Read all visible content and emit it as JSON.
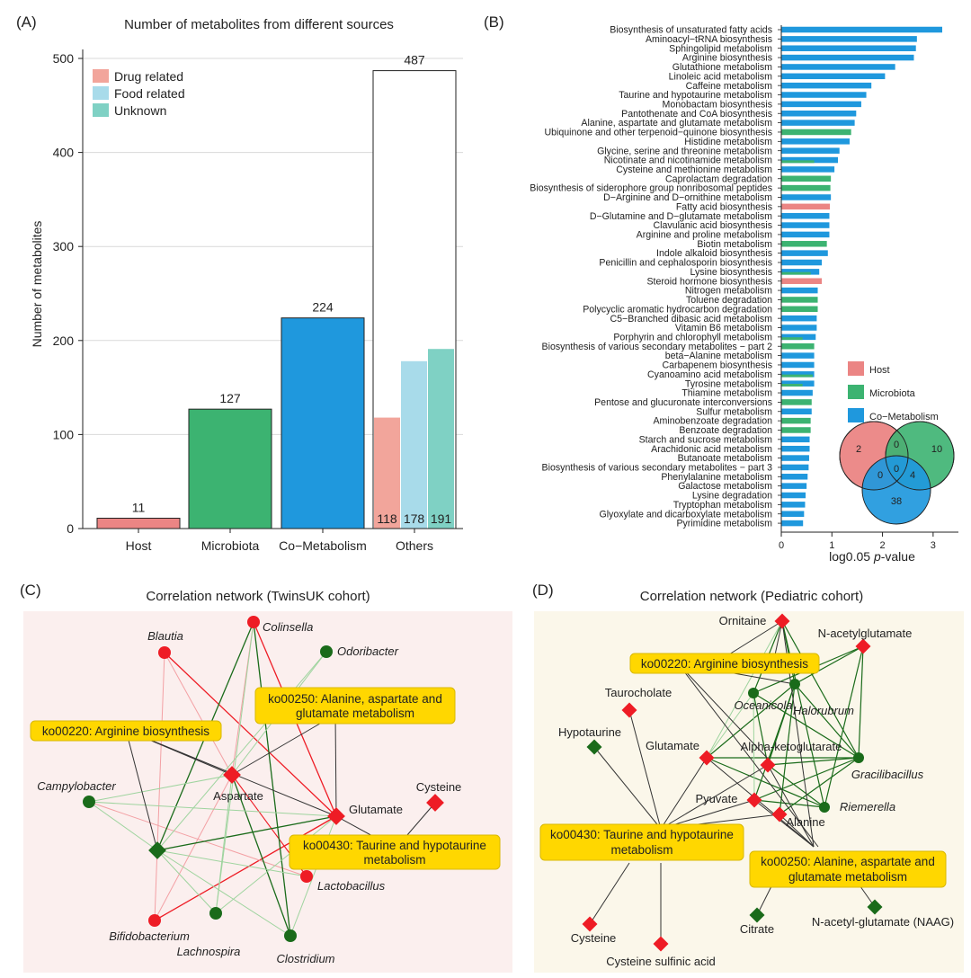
{
  "panels": {
    "a": "(A)",
    "b": "(B)",
    "c": "(C)",
    "d": "(D)"
  },
  "colors": {
    "host": "#eb8584",
    "microbiota": "#3cb371",
    "comet": "#1f98dd",
    "drug": "#f2a59b",
    "food": "#a8dbea",
    "unknown": "#7fd1c4",
    "net_red": "#ee1c25",
    "net_green": "#1a6b1a",
    "label_box": "#ffd700",
    "bg_c": "#fbefee",
    "bg_d": "#fbf7ea"
  },
  "chart_data": [
    {
      "type": "bar",
      "title": "Number of  metabolites from different sources",
      "ylabel": "Number of  metabolites",
      "xlabel": "",
      "ylim": [
        0,
        500
      ],
      "yticks": [
        0,
        100,
        200,
        300,
        400,
        500
      ],
      "categories": [
        "Host",
        "Microbiota",
        "Co−Metabolism",
        "Others"
      ],
      "values": [
        11,
        127,
        224,
        487
      ],
      "others_breakdown": [
        {
          "name": "Drug related",
          "value": 118
        },
        {
          "name": "Food related",
          "value": 178
        },
        {
          "name": "Unknown",
          "value": 191
        }
      ],
      "legend": [
        "Drug related",
        "Food related",
        "Unknown"
      ]
    },
    {
      "type": "bar",
      "orientation": "horizontal",
      "xlabel_prefix": "log0.05 ",
      "xlabel_italic": "p",
      "xlabel_suffix": "-value",
      "xlim": [
        0,
        3.5
      ],
      "xticks": [
        0,
        1,
        2,
        3
      ],
      "legend": [
        "Host",
        "Microbiota",
        "Co−Metabolism"
      ],
      "categories": [
        "Biosynthesis of unsaturated fatty acids",
        "Aminoacyl−tRNA biosynthesis",
        "Sphingolipid metabolism",
        "Arginine biosynthesis",
        "Glutathione metabolism",
        "Linoleic acid metabolism",
        "Caffeine metabolism",
        "Taurine and hypotaurine metabolism",
        "Monobactam biosynthesis",
        "Pantothenate and CoA biosynthesis",
        "Alanine, aspartate and glutamate metabolism",
        "Ubiquinone and other terpenoid−quinone biosynthesis",
        "Histidine metabolism",
        "Glycine, serine and threonine metabolism",
        "Nicotinate and nicotinamide metabolism",
        "Cysteine and methionine metabolism",
        "Caprolactam degradation",
        "Biosynthesis of siderophore group nonribosomal peptides",
        "D−Arginine and D−ornithine metabolism",
        "Fatty acid biosynthesis",
        "D−Glutamine and D−glutamate metabolism",
        "Clavulanic acid biosynthesis",
        "Arginine and proline metabolism",
        "Biotin metabolism",
        "Indole alkaloid biosynthesis",
        "Penicillin and cephalosporin biosynthesis",
        "Lysine biosynthesis",
        "Steroid hormone biosynthesis",
        "Nitrogen metabolism",
        "Toluene degradation",
        "Polycyclic aromatic hydrocarbon degradation",
        "C5−Branched dibasic acid metabolism",
        "Vitamin B6 metabolism",
        "Porphyrin and chlorophyll metabolism",
        "Biosynthesis of various secondary metabolites − part 2",
        "beta−Alanine metabolism",
        "Carbapenem biosynthesis",
        "Cyanoamino acid metabolism",
        "Tyrosine metabolism",
        "Thiamine metabolism",
        "Pentose and glucuronate interconversions",
        "Sulfur metabolism",
        "Aminobenzoate degradation",
        "Benzoate degradation",
        "Starch and sucrose metabolism",
        "Arachidonic acid metabolism",
        "Butanoate metabolism",
        "Biosynthesis of various secondary metabolites − part 3",
        "Phenylalanine metabolism",
        "Galactose metabolism",
        "Lysine degradation",
        "Tryptophan metabolism",
        "Glyoxylate and dicarboxylate metabolism",
        "Pyrimidine metabolism"
      ],
      "series": [
        {
          "name": "Co−Metabolism",
          "values": [
            3.18,
            2.68,
            2.66,
            2.62,
            2.25,
            2.05,
            1.78,
            1.68,
            1.58,
            1.48,
            1.45,
            null,
            1.35,
            1.15,
            1.12,
            1.05,
            null,
            null,
            0.98,
            null,
            0.95,
            0.95,
            0.95,
            null,
            0.92,
            0.8,
            0.75,
            null,
            0.72,
            null,
            null,
            0.7,
            0.7,
            0.68,
            null,
            0.65,
            0.65,
            0.65,
            0.65,
            0.62,
            null,
            0.6,
            null,
            null,
            0.56,
            0.56,
            0.55,
            0.54,
            0.52,
            0.5,
            0.48,
            0.47,
            0.45,
            0.43
          ]
        },
        {
          "name": "Microbiota",
          "values": [
            null,
            null,
            null,
            null,
            null,
            null,
            null,
            null,
            null,
            null,
            null,
            1.38,
            null,
            null,
            0.65,
            null,
            0.98,
            0.97,
            null,
            null,
            null,
            null,
            null,
            0.9,
            null,
            null,
            0.58,
            null,
            null,
            0.72,
            0.72,
            null,
            null,
            0.42,
            0.65,
            null,
            null,
            0.62,
            0.42,
            null,
            0.6,
            null,
            0.58,
            0.58,
            null,
            null,
            null,
            null,
            null,
            null,
            null,
            null,
            null,
            null
          ]
        },
        {
          "name": "Host",
          "values": [
            null,
            null,
            null,
            null,
            null,
            null,
            null,
            null,
            null,
            null,
            null,
            null,
            null,
            null,
            null,
            null,
            null,
            null,
            null,
            0.96,
            null,
            null,
            null,
            null,
            null,
            null,
            null,
            0.8,
            null,
            null,
            null,
            null,
            null,
            null,
            null,
            null,
            null,
            null,
            null,
            null,
            null,
            null,
            null,
            null,
            null,
            null,
            null,
            null,
            null,
            null,
            null,
            null,
            null,
            null
          ]
        }
      ],
      "venn": {
        "host_only": "2",
        "micro_only": "10",
        "comet_only": "38",
        "host_micro": "0",
        "host_comet": "0",
        "micro_comet": "4",
        "all": "0"
      }
    }
  ],
  "network_c": {
    "title": "Correlation network (TwinsUK cohort)",
    "labels": {
      "blautia": "Blautia",
      "colinsella": "Colinsella",
      "odoribacter": "Odoribacter",
      "campylobacter": "Campylobacter",
      "aspartate": "Aspartate",
      "glutamate": "Glutamate",
      "cysteine": "Cysteine",
      "lactobacillus": "Lactobacillus",
      "bifidobacterium": "Bifidobacterium",
      "lachnospira": "Lachnospira",
      "clostridium": "Clostridium",
      "ko250_line1": "ko00250: Alanine, aspartate and",
      "ko250_line2": "glutamate metabolism",
      "ko220": "ko00220: Arginine biosynthesis",
      "ko430_line1": "ko00430: Taurine and hypotaurine",
      "ko430_line2": "metabolism"
    }
  },
  "network_d": {
    "title": "Correlation network (Pediatric cohort)",
    "labels": {
      "ornitaine": "Ornitaine",
      "nacetylglutamate": "N-acetylglutamate",
      "ko220": "ko00220: Arginine biosynthesis",
      "taurocholate": "Taurocholate",
      "oceanicola": "Oceanicola",
      "halorubrum": "Halorubrum",
      "hypotaurine": "Hypotaurine",
      "glutamate": "Glutamate",
      "alphaketo": "Alpha-ketoglutarate",
      "gracilibacillus": "Gracilibacillus",
      "pyuvate": "Pyuvate",
      "riemerella": "Riemerella",
      "alanine": "Alanine",
      "ko430_line1": "ko00430: Taurine and hypotaurine",
      "ko430_line2": "metabolism",
      "ko250_line1": "ko00250: Alanine, aspartate and",
      "ko250_line2": "glutamate metabolism",
      "citrate": "Citrate",
      "naag": "N-acetyl-glutamate (NAAG)",
      "cysteine": "Cysteine",
      "cysteine_sulfinic": "Cysteine sulfinic acid"
    }
  }
}
